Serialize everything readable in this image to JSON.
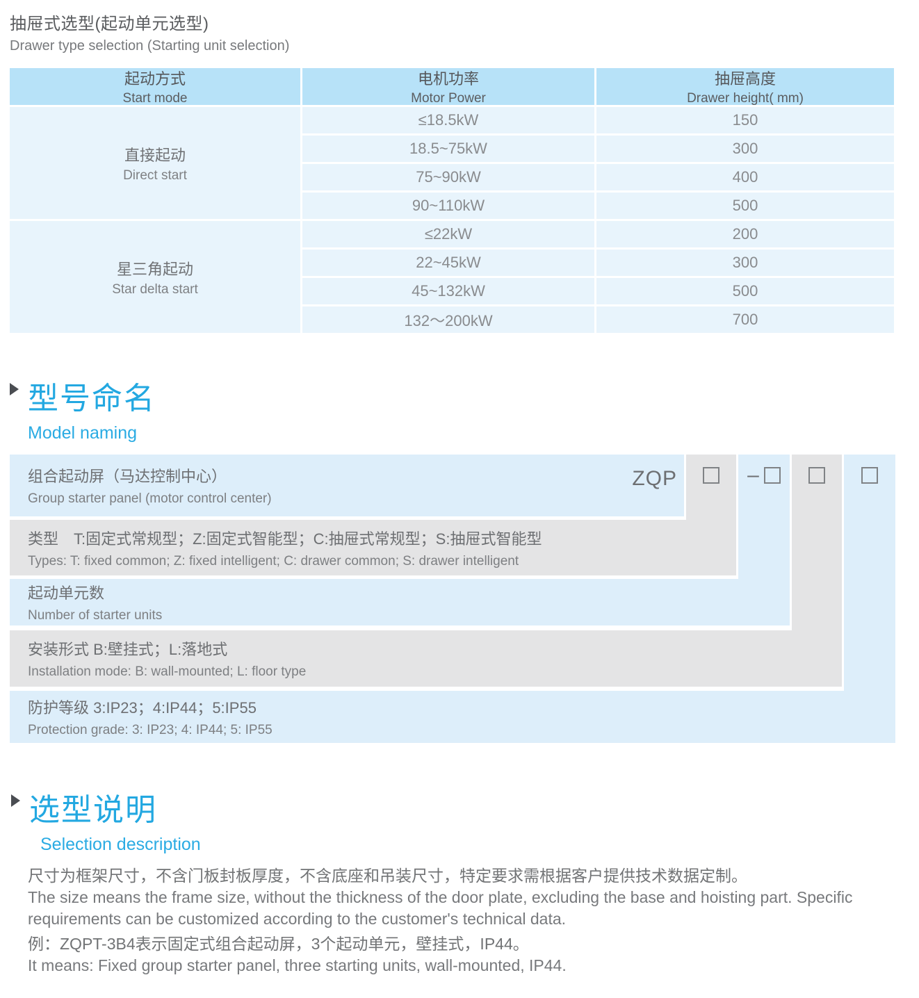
{
  "page": {
    "title_zh": "抽屉式选型(起动单元选型)",
    "title_en": "Drawer type selection (Starting unit selection)"
  },
  "table": {
    "headers": {
      "start_mode": {
        "zh": "起动方式",
        "en": "Start mode"
      },
      "motor_power": {
        "zh": "电机功率",
        "en": "Motor Power"
      },
      "drawer_height": {
        "zh": "抽屉高度",
        "en": "Drawer height( mm)"
      }
    },
    "groups": [
      {
        "mode_zh": "直接起动",
        "mode_en": "Direct start",
        "rows": [
          {
            "power": "≤18.5kW",
            "height": "150"
          },
          {
            "power": "18.5~75kW",
            "height": "300"
          },
          {
            "power": "75~90kW",
            "height": "400"
          },
          {
            "power": "90~110kW",
            "height": "500"
          }
        ]
      },
      {
        "mode_zh": "星三角起动",
        "mode_en": "Star delta start",
        "rows": [
          {
            "power": "≤22kW",
            "height": "200"
          },
          {
            "power": "22~45kW",
            "height": "300"
          },
          {
            "power": "45~132kW",
            "height": "500"
          },
          {
            "power": "132～200kW",
            "height": "700"
          }
        ]
      }
    ]
  },
  "model_naming": {
    "heading_zh": "型号命名",
    "heading_en": "Model naming",
    "code": "ZQP",
    "dash": "–",
    "rows": [
      {
        "zh": "组合起动屏（马达控制中心）",
        "en": "Group starter panel (motor control center)"
      },
      {
        "zh": "类型　T:固定式常规型；Z:固定式智能型；C:抽屉式常规型；S:抽屉式智能型",
        "en": "Types: T: fixed common; Z: fixed intelligent; C: drawer common; S: drawer intelligent"
      },
      {
        "zh": "起动单元数",
        "en": "Number of starter units"
      },
      {
        "zh": "安装形式 B:壁挂式；L:落地式",
        "en": "Installation mode: B: wall-mounted; L: floor type"
      },
      {
        "zh": "防护等级 3:IP23；4:IP44；5:IP55",
        "en": "Protection grade:  3: IP23; 4: IP44; 5: IP55"
      }
    ]
  },
  "selection": {
    "heading_zh": "选型说明",
    "heading_en": "Selection description",
    "p1_zh": "尺寸为框架尺寸，不含门板封板厚度，不含底座和吊装尺寸，特定要求需根据客户提供技术数据定制。",
    "p1_en": "The size means the frame size, without the thickness of the door plate, excluding the base and hoisting part. Specific requirements can be customized according to the customer's technical data.",
    "p2_zh": "例：ZQPT-3B4表示固定式组合起动屏，3个起动单元，壁挂式，IP44。",
    "p2_en": "It means: Fixed group starter panel, three starting units, wall-mounted, IP44."
  },
  "colors": {
    "accent_blue": "#29abe2",
    "table_header_blue": "#b7e2f8",
    "table_row_blue": "#e8f4fc",
    "ladder_blue": "#ddeefa",
    "ladder_gray": "#e4e4e5"
  }
}
